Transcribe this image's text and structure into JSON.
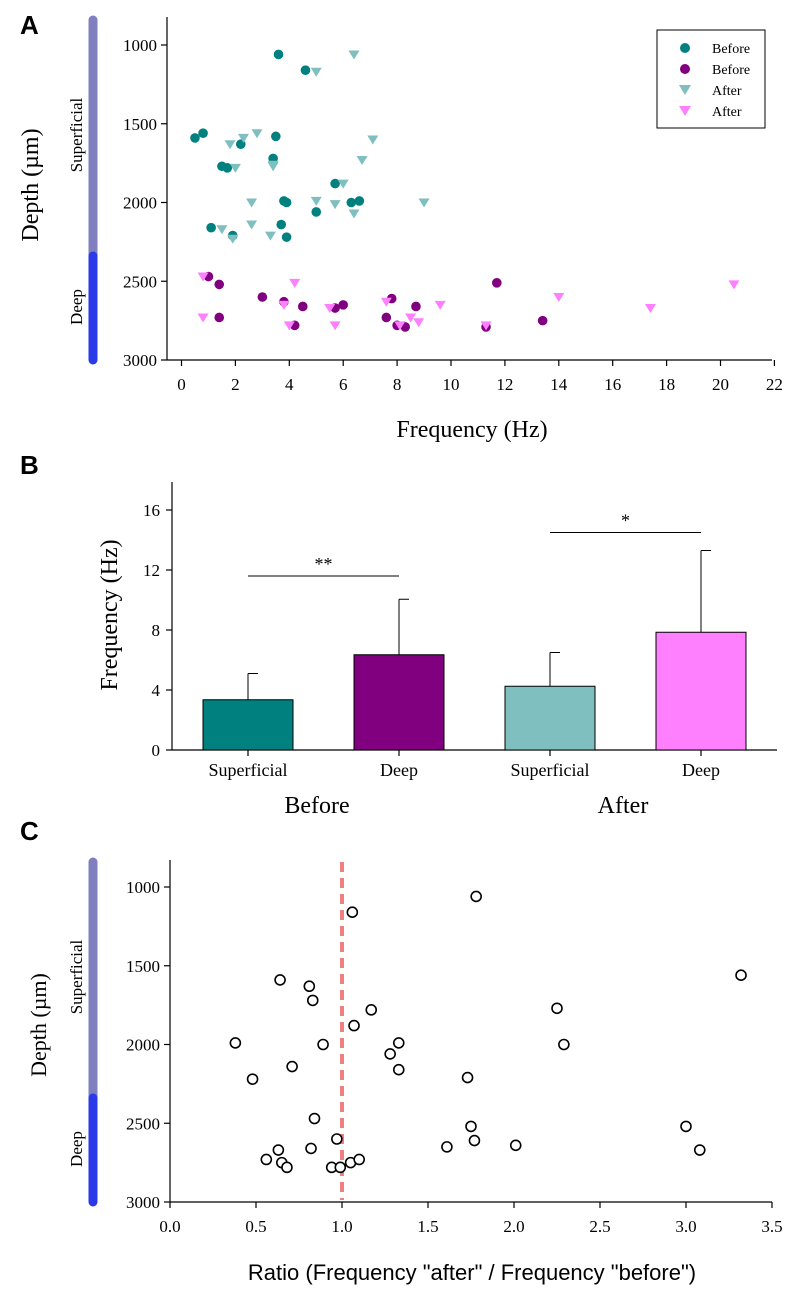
{
  "colors": {
    "before_superficial": "#00807f",
    "before_deep": "#800080",
    "after_superficial": "#7fbfbf",
    "after_deep": "#ff80ff",
    "superficial_bar": "#8080c0",
    "deep_bar": "#2b3ae8",
    "ratio_line": "#f08080"
  },
  "layer_labels": {
    "superficial": "Superficial",
    "deep": "Deep"
  },
  "chart_data": [
    {
      "id": "A",
      "type": "scatter",
      "panel_label": "A",
      "xlabel": "Frequency (Hz)",
      "ylabel": "Depth (µm)",
      "xlim": [
        -0.5,
        22
      ],
      "ylim": [
        3000,
        800
      ],
      "xticks": [
        0,
        2,
        4,
        6,
        8,
        10,
        12,
        14,
        16,
        18,
        20,
        22
      ],
      "yticks": [
        1000,
        1500,
        2000,
        2500,
        3000
      ],
      "legend": [
        "Before",
        "Before",
        "After",
        "After"
      ],
      "series": [
        {
          "name": "Before",
          "layer": "superficial",
          "marker": "circle",
          "color": "#00807f",
          "x": [
            3.6,
            4.6,
            0.5,
            0.8,
            2.2,
            3.5,
            1.5,
            1.7,
            3.4,
            5.7,
            3.8,
            3.9,
            6.3,
            6.6,
            5.0,
            3.7,
            1.1,
            1.9,
            3.9
          ],
          "y": [
            1060,
            1160,
            1590,
            1560,
            1630,
            1580,
            1770,
            1780,
            1720,
            1880,
            1990,
            2000,
            2000,
            1990,
            2060,
            2140,
            2160,
            2210,
            2220
          ]
        },
        {
          "name": "Before",
          "layer": "deep",
          "marker": "circle",
          "color": "#800080",
          "x": [
            1.0,
            1.4,
            1.4,
            3.0,
            3.8,
            4.5,
            4.2,
            5.7,
            6.0,
            7.6,
            7.8,
            8.0,
            8.3,
            8.7,
            11.3,
            11.7,
            13.4
          ],
          "y": [
            2470,
            2520,
            2730,
            2600,
            2630,
            2660,
            2780,
            2670,
            2650,
            2730,
            2610,
            2780,
            2790,
            2660,
            2790,
            2510,
            2750
          ]
        },
        {
          "name": "After",
          "layer": "superficial",
          "marker": "triangle",
          "color": "#7fbfbf",
          "x": [
            6.4,
            5.0,
            2.8,
            2.3,
            1.8,
            3.4,
            7.1,
            6.7,
            2.0,
            3.4,
            6.0,
            2.6,
            5.7,
            5.0,
            6.4,
            9.0,
            2.6,
            1.5,
            3.3,
            1.9
          ],
          "y": [
            1060,
            1170,
            1560,
            1590,
            1630,
            1770,
            1600,
            1730,
            1780,
            1760,
            1880,
            2000,
            2010,
            1990,
            2070,
            2000,
            2140,
            2170,
            2210,
            2230
          ]
        },
        {
          "name": "After",
          "layer": "deep",
          "marker": "triangle",
          "color": "#ff80ff",
          "x": [
            0.8,
            4.2,
            3.8,
            4.0,
            5.5,
            5.7,
            7.6,
            8.5,
            8.8,
            9.6,
            8.1,
            11.3,
            14.0,
            17.4,
            20.5,
            0.8
          ],
          "y": [
            2470,
            2510,
            2650,
            2780,
            2670,
            2780,
            2630,
            2730,
            2760,
            2650,
            2780,
            2780,
            2600,
            2670,
            2520,
            2730
          ]
        }
      ]
    },
    {
      "id": "B",
      "type": "bar",
      "panel_label": "B",
      "ylabel": "Frequency (Hz)",
      "ylim": [
        0,
        18
      ],
      "yticks": [
        0,
        4,
        8,
        12,
        16
      ],
      "categories": [
        "Superficial",
        "Deep",
        "Superficial",
        "Deep"
      ],
      "groups": [
        "Before",
        "After"
      ],
      "values": [
        3.35,
        6.35,
        4.25,
        7.85
      ],
      "errors": [
        1.75,
        3.7,
        2.25,
        5.45
      ],
      "bar_colors": [
        "#00807f",
        "#800080",
        "#7fbfbf",
        "#ff80ff"
      ],
      "significance": [
        {
          "label": "**",
          "from": 0,
          "to": 1,
          "level": 11.6
        },
        {
          "label": "*",
          "from": 2,
          "to": 3,
          "level": 14.5
        }
      ]
    },
    {
      "id": "C",
      "type": "scatter",
      "panel_label": "C",
      "xlabel": "Ratio (Frequency \"after\" / Frequency \"before\")",
      "ylabel": "Depth (µm)",
      "xlim": [
        0,
        3.5
      ],
      "ylim": [
        3000,
        800
      ],
      "xticks": [
        "0.0",
        "0.5",
        "1.0",
        "1.5",
        "2.0",
        "2.5",
        "3.0",
        "3.5"
      ],
      "yticks": [
        1000,
        1500,
        2000,
        2500,
        3000
      ],
      "reference_line_x": 1.0,
      "points": {
        "x": [
          1.78,
          1.06,
          3.32,
          0.64,
          0.81,
          0.83,
          1.17,
          2.25,
          1.07,
          0.38,
          0.89,
          1.33,
          1.28,
          2.29,
          1.33,
          0.48,
          0.71,
          1.73,
          0.84,
          1.75,
          0.97,
          1.77,
          2.01,
          1.61,
          3.0,
          3.08,
          0.56,
          0.63,
          0.82,
          0.65,
          0.68,
          0.94,
          0.99,
          1.05,
          1.1
        ],
        "y": [
          1060,
          1160,
          1560,
          1590,
          1630,
          1720,
          1780,
          1770,
          1880,
          1990,
          2000,
          1990,
          2060,
          2000,
          2160,
          2220,
          2140,
          2210,
          2470,
          2520,
          2600,
          2610,
          2640,
          2650,
          2520,
          2670,
          2730,
          2670,
          2660,
          2750,
          2780,
          2780,
          2780,
          2750,
          2730
        ]
      }
    }
  ]
}
